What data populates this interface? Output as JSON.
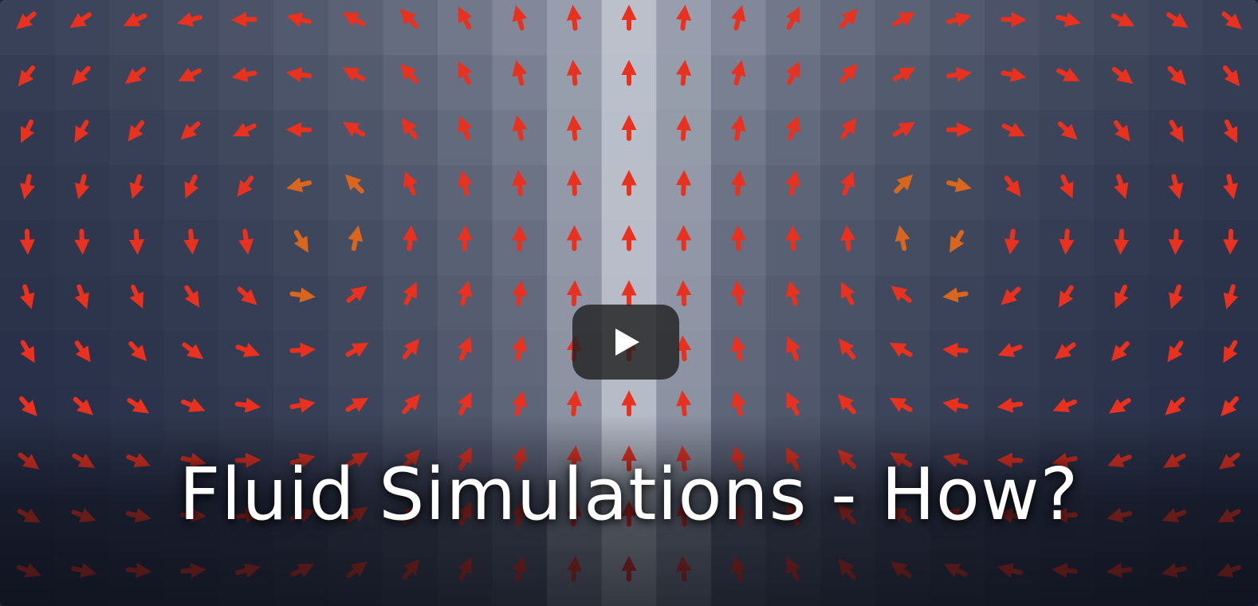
{
  "video": {
    "title": "Fluid Simulations - How?",
    "play_icon": "play-icon",
    "colors": {
      "background_dark": "#1e2740",
      "background_light": "#c9ced8",
      "arrow_primary": "#e8311f",
      "arrow_highlight": "#d9661c",
      "play_button": "#212121",
      "title_text": "#ffffff"
    }
  }
}
